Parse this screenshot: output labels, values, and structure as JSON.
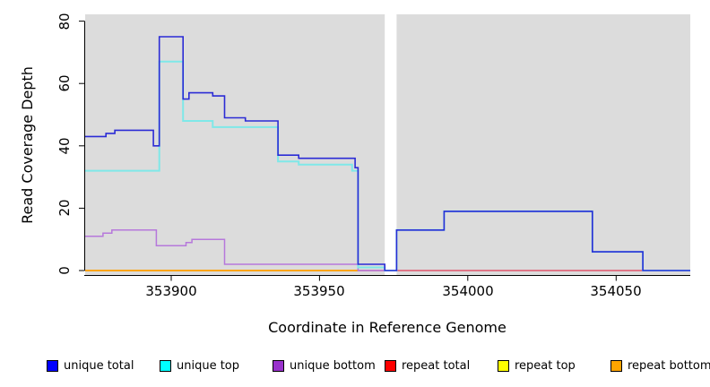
{
  "axes": {
    "x_label": "Coordinate in Reference Genome",
    "y_label": "Read Coverage Depth"
  },
  "chart_data": {
    "type": "line",
    "subtype": "step-coverage-plot",
    "title": "",
    "xlabel": "Coordinate in Reference Genome",
    "ylabel": "Read Coverage Depth",
    "xlim": [
      353871,
      354075
    ],
    "ylim": [
      0,
      80
    ],
    "x_ticks": [
      353900,
      353950,
      354000,
      354050
    ],
    "y_ticks": [
      0,
      20,
      40,
      60,
      80
    ],
    "grid": false,
    "plot_background": "#DCDCDC",
    "gap_background": "#FFFFFF",
    "gap": {
      "x_start": 353972,
      "x_end": 353976
    },
    "series": [
      {
        "name": "repeat top",
        "color": "#FFFF00",
        "width": 1.5,
        "points": [
          [
            353871,
            0
          ],
          [
            353963,
            0
          ]
        ]
      },
      {
        "name": "repeat total",
        "color": "#E0556B",
        "width": 1.5,
        "points": [
          [
            353871,
            0
          ],
          [
            354075,
            0
          ]
        ]
      },
      {
        "name": "repeat bottom",
        "color": "#FFA500",
        "width": 1.8,
        "points": [
          [
            353871,
            0
          ],
          [
            353963,
            0
          ]
        ]
      },
      {
        "name": "unique bottom",
        "color": "#B678DB",
        "width": 1.5,
        "points": [
          [
            353871,
            11
          ],
          [
            353877,
            12
          ],
          [
            353880,
            13
          ],
          [
            353895,
            8
          ],
          [
            353905,
            9
          ],
          [
            353907,
            10
          ],
          [
            353918,
            2
          ],
          [
            353963,
            0
          ],
          [
            353972,
            0
          ]
        ]
      },
      {
        "name": "unique top",
        "color": "#7FE8E8",
        "width": 2,
        "points": [
          [
            353871,
            32
          ],
          [
            353896,
            67
          ],
          [
            353904,
            48
          ],
          [
            353914,
            46
          ],
          [
            353936,
            35
          ],
          [
            353943,
            34
          ],
          [
            353961,
            32
          ],
          [
            353963,
            1
          ],
          [
            353972,
            0
          ],
          [
            353976,
            13
          ],
          [
            353992,
            19
          ],
          [
            354042,
            6
          ],
          [
            354059,
            0
          ],
          [
            354075,
            0
          ]
        ]
      },
      {
        "name": "unique total",
        "color": "#2B2BD5",
        "width": 1.6,
        "points": [
          [
            353871,
            43
          ],
          [
            353878,
            44
          ],
          [
            353881,
            45
          ],
          [
            353894,
            40
          ],
          [
            353896,
            75
          ],
          [
            353904,
            55
          ],
          [
            353906,
            57
          ],
          [
            353914,
            56
          ],
          [
            353918,
            49
          ],
          [
            353925,
            48
          ],
          [
            353936,
            37
          ],
          [
            353943,
            36
          ],
          [
            353962,
            33
          ],
          [
            353963,
            2
          ],
          [
            353972,
            0
          ],
          [
            353976,
            13
          ],
          [
            353992,
            19
          ],
          [
            354042,
            6
          ],
          [
            354059,
            0
          ],
          [
            354075,
            0
          ]
        ]
      }
    ],
    "legend_position": "bottom"
  },
  "legend": {
    "items": [
      {
        "label": "unique total",
        "color": "#0000FF"
      },
      {
        "label": "unique top",
        "color": "#00FFFF"
      },
      {
        "label": "unique bottom",
        "color": "#9932CC"
      },
      {
        "label": "repeat total",
        "color": "#FF0000"
      },
      {
        "label": "repeat top",
        "color": "#FFFF00"
      },
      {
        "label": "repeat bottom",
        "color": "#FFA500"
      }
    ]
  }
}
